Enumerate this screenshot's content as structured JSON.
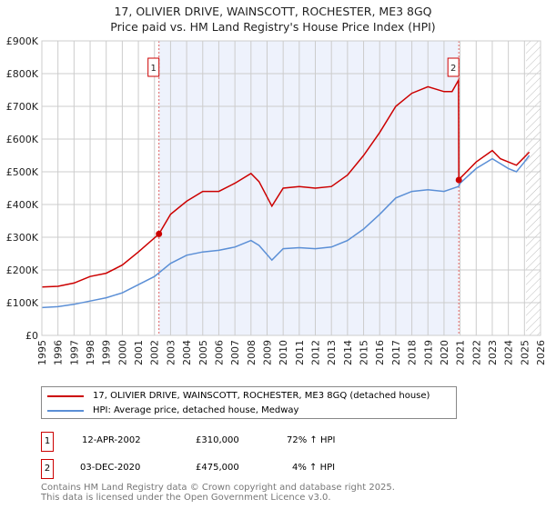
{
  "title": "17, OLIVIER DRIVE, WAINSCOTT, ROCHESTER, ME3 8GQ",
  "subtitle": "Price paid vs. HM Land Registry's House Price Index (HPI)",
  "chart_data": {
    "type": "line",
    "title": "17, OLIVIER DRIVE, WAINSCOTT, ROCHESTER, ME3 8GQ",
    "xlim": [
      1995,
      2026
    ],
    "ylim": [
      0,
      900000
    ],
    "yticks": [
      0,
      100000,
      200000,
      300000,
      400000,
      500000,
      600000,
      700000,
      800000,
      900000
    ],
    "ytick_labels": [
      "£0",
      "£100K",
      "£200K",
      "£300K",
      "£400K",
      "£500K",
      "£600K",
      "£700K",
      "£800K",
      "£900K"
    ],
    "xticks": [
      "1995",
      "1996",
      "1997",
      "1998",
      "1999",
      "2000",
      "2001",
      "2002",
      "2003",
      "2004",
      "2005",
      "2006",
      "2007",
      "2008",
      "2009",
      "2010",
      "2011",
      "2012",
      "2013",
      "2014",
      "2015",
      "2016",
      "2017",
      "2018",
      "2019",
      "2020",
      "2021",
      "2022",
      "2023",
      "2024",
      "2025",
      "2026"
    ],
    "grid": true,
    "series": [
      {
        "name": "17, OLIVIER DRIVE, WAINSCOTT, ROCHESTER, ME3 8GQ (detached house)",
        "color": "#cc0000",
        "x": [
          1995,
          1996,
          1997,
          1998,
          1999,
          2000,
          2001,
          2002.28,
          2003,
          2004,
          2005,
          2006,
          2007,
          2008,
          2008.5,
          2009.3,
          2010,
          2011,
          2012,
          2013,
          2014,
          2015,
          2016,
          2017,
          2018,
          2019,
          2020,
          2020.5,
          2020.9,
          2020.92,
          2021,
          2022,
          2023,
          2023.5,
          2024,
          2024.5,
          2025,
          2025.3
        ],
        "y": [
          148000,
          150000,
          160000,
          180000,
          190000,
          215000,
          255000,
          310000,
          370000,
          410000,
          440000,
          440000,
          465000,
          495000,
          470000,
          395000,
          450000,
          455000,
          450000,
          455000,
          490000,
          550000,
          620000,
          700000,
          740000,
          760000,
          745000,
          745000,
          780000,
          475000,
          480000,
          530000,
          565000,
          540000,
          530000,
          520000,
          545000,
          560000
        ]
      },
      {
        "name": "HPI: Average price, detached house, Medway",
        "color": "#5b8fd6",
        "x": [
          1995,
          1996,
          1997,
          1998,
          1999,
          2000,
          2001,
          2002,
          2003,
          2004,
          2005,
          2006,
          2007,
          2008,
          2008.5,
          2009.3,
          2010,
          2011,
          2012,
          2013,
          2014,
          2015,
          2016,
          2017,
          2018,
          2019,
          2020,
          2020.9,
          2021,
          2022,
          2023,
          2023.5,
          2024,
          2024.5,
          2025,
          2025.3
        ],
        "y": [
          85000,
          88000,
          95000,
          105000,
          115000,
          130000,
          155000,
          180000,
          220000,
          245000,
          255000,
          260000,
          270000,
          290000,
          275000,
          230000,
          265000,
          268000,
          265000,
          270000,
          290000,
          325000,
          370000,
          420000,
          440000,
          445000,
          440000,
          455000,
          465000,
          510000,
          540000,
          525000,
          510000,
          500000,
          530000,
          550000
        ]
      }
    ],
    "annotations": [
      {
        "label": "1",
        "x": 2002.28,
        "y": 310000
      },
      {
        "label": "2",
        "x": 2020.92,
        "y": 475000
      }
    ]
  },
  "legend": [
    {
      "label": "17, OLIVIER DRIVE, WAINSCOTT, ROCHESTER, ME3 8GQ (detached house)",
      "color": "#cc0000"
    },
    {
      "label": "HPI: Average price, detached house, Medway",
      "color": "#5b8fd6"
    }
  ],
  "transactions": [
    {
      "num": "1",
      "date": "12-APR-2002",
      "price": "£310,000",
      "hpi": "72% ↑ HPI"
    },
    {
      "num": "2",
      "date": "03-DEC-2020",
      "price": "£475,000",
      "hpi": "4% ↑ HPI"
    }
  ],
  "footer": [
    "Contains HM Land Registry data © Crown copyright and database right 2025.",
    "This data is licensed under the Open Government Licence v3.0."
  ]
}
